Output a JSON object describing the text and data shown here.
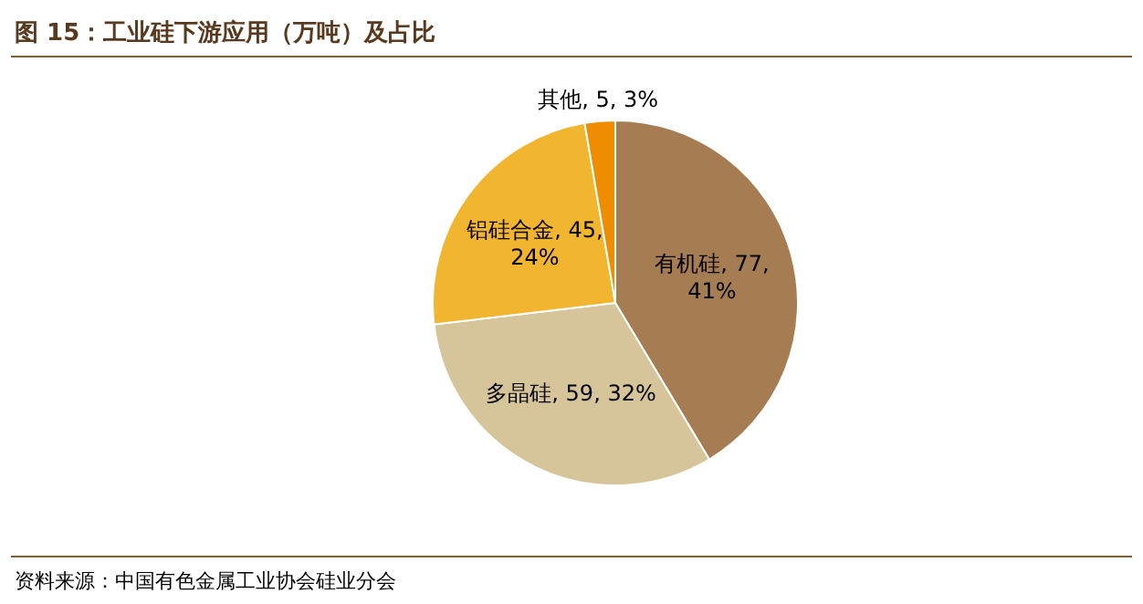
{
  "chart_data": {
    "type": "pie",
    "title": "图 15：工业硅下游应用（万吨）及占比",
    "categories": [
      "有机硅",
      "多晶硅",
      "铝硅合金",
      "其他"
    ],
    "values": [
      77,
      59,
      45,
      5
    ],
    "value_labels": [
      "77, 41%",
      "59, 32%",
      "45, 24%",
      "5, 3%"
    ],
    "colors": [
      "#a67c52",
      "#d6c59a",
      "#f2b530",
      "#f08c00"
    ],
    "annotations": [
      "资料来源：中国有色金属工业协会硅业分会"
    ]
  }
}
